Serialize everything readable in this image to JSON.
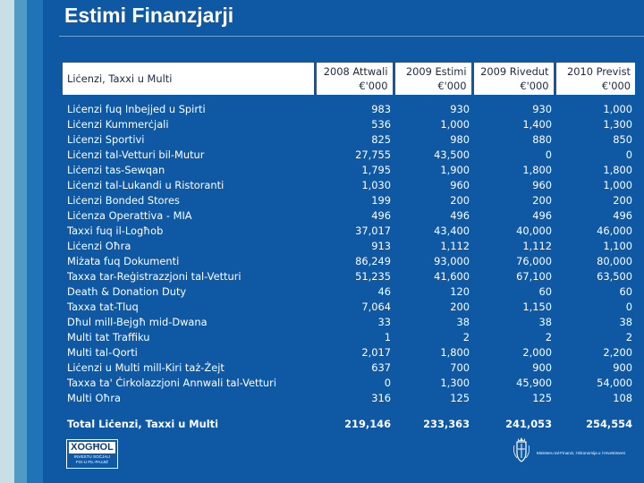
{
  "page": {
    "title": "Estimi Finanzjarji"
  },
  "table": {
    "header": {
      "label": "Liċenzi, Taxxi u Multi",
      "columns": [
        {
          "line1": "2008 Attwali",
          "line2": "€'000"
        },
        {
          "line1": "2009 Estimi",
          "line2": "€'000"
        },
        {
          "line1": "2009 Rivedut",
          "line2": "€'000"
        },
        {
          "line1": "2010 Previst",
          "line2": "€'000"
        }
      ]
    },
    "rows": [
      {
        "label": "Liċenzi fuq Inbejjed u Spirti",
        "v": [
          "983",
          "930",
          "930",
          "1,000"
        ]
      },
      {
        "label": "Liċenzi Kummerċjali",
        "v": [
          "536",
          "1,000",
          "1,400",
          "1,300"
        ]
      },
      {
        "label": "Liċenzi Sportivi",
        "v": [
          "825",
          "980",
          "880",
          "850"
        ]
      },
      {
        "label": "Liċenzi tal-Vetturi bil-Mutur",
        "v": [
          "27,755",
          "43,500",
          "0",
          "0"
        ]
      },
      {
        "label": "Liċenzi tas-Sewqan",
        "v": [
          "1,795",
          "1,900",
          "1,800",
          "1,800"
        ]
      },
      {
        "label": "Liċenzi tal-Lukandi u Ristoranti",
        "v": [
          "1,030",
          "960",
          "960",
          "1,000"
        ]
      },
      {
        "label": "Liċenzi Bonded Stores",
        "v": [
          "199",
          "200",
          "200",
          "200"
        ]
      },
      {
        "label": "Liċenza Operattiva - MIA",
        "v": [
          "496",
          "496",
          "496",
          "496"
        ]
      },
      {
        "label": "Taxxi fuq il-Logħob",
        "v": [
          "37,017",
          "43,400",
          "40,000",
          "46,000"
        ]
      },
      {
        "label": "Liċenzi Oħra",
        "v": [
          "913",
          "1,112",
          "1,112",
          "1,100"
        ]
      },
      {
        "label": "Miżata fuq Dokumenti",
        "v": [
          "86,249",
          "93,000",
          "76,000",
          "80,000"
        ]
      },
      {
        "label": "Taxxa tar-Reġistrazzjoni tal-Vetturi",
        "v": [
          "51,235",
          "41,600",
          "67,100",
          "63,500"
        ]
      },
      {
        "label": "Death & Donation Duty",
        "v": [
          "46",
          "120",
          "60",
          "60"
        ]
      },
      {
        "label": "Taxxa tat-Tluq",
        "v": [
          "7,064",
          "200",
          "1,150",
          "0"
        ]
      },
      {
        "label": "Dħul mill-Bejgħ mid-Dwana",
        "v": [
          "33",
          "38",
          "38",
          "38"
        ]
      },
      {
        "label": "Multi tat Traffiku",
        "v": [
          "1",
          "2",
          "2",
          "2"
        ]
      },
      {
        "label": "Multi tal-Qorti",
        "v": [
          "2,017",
          "1,800",
          "2,000",
          "2,200"
        ]
      },
      {
        "label": "Liċenzi u Multi mill-Kiri taż-Żejt",
        "v": [
          "637",
          "700",
          "900",
          "900"
        ]
      },
      {
        "label": "Taxxa ta' Ċirkolazzjoni Annwali tal-Vetturi",
        "v": [
          "0",
          "1,300",
          "45,900",
          "54,000"
        ]
      },
      {
        "label": "Multi Oħra",
        "v": [
          "316",
          "125",
          "125",
          "108"
        ]
      }
    ],
    "total": {
      "label": "Total Liċenzi, Taxxi u Multi",
      "v": [
        "219,146",
        "233,363",
        "241,053",
        "254,554"
      ]
    }
  },
  "footer": {
    "logo_word": "XOGĦOL",
    "logo_sub1": "INVESTU SOĊJALI",
    "logo_sub2": "FIX-U FIL-PAJJIŻ",
    "ministry": "Ministeru tal-Finanzi, l-Ekonomija u l-Investiment"
  }
}
